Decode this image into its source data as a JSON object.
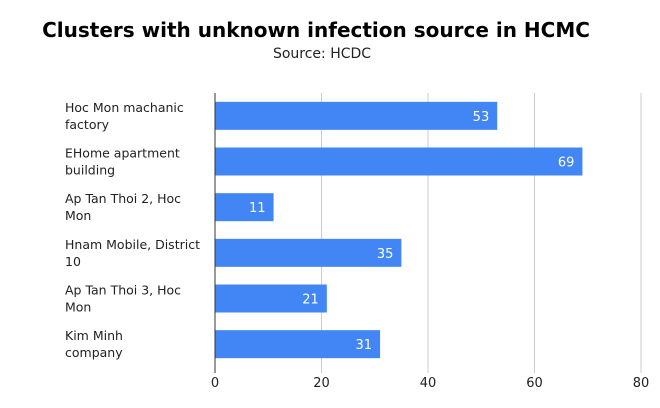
{
  "chart_data": {
    "type": "bar",
    "orientation": "horizontal",
    "title": "Clusters with unknown infection source in HCMC",
    "subtitle": "Source: HCDC",
    "categories": [
      "Hoc Mon machanic factory",
      "EHome apartment building",
      "Ap Tan Thoi 2, Hoc Mon",
      "Hnam Mobile, District 10",
      "Ap Tan Thoi 3, Hoc Mon",
      "Kim Minh company"
    ],
    "category_label_lines": [
      [
        "Hoc Mon machanic",
        "factory"
      ],
      [
        "EHome apartment",
        "building"
      ],
      [
        "Ap Tan Thoi 2, Hoc",
        "Mon"
      ],
      [
        "Hnam Mobile, District",
        "10"
      ],
      [
        "Ap Tan Thoi 3, Hoc",
        "Mon"
      ],
      [
        "Kim Minh",
        "company"
      ]
    ],
    "values": [
      53,
      69,
      11,
      35,
      21,
      31
    ],
    "xlim": [
      0,
      80
    ],
    "ticks": [
      0,
      20,
      40,
      60,
      80
    ],
    "xlabel": "",
    "ylabel": "",
    "grid": true,
    "bar_color": "#4285f4",
    "data_labels": true
  }
}
